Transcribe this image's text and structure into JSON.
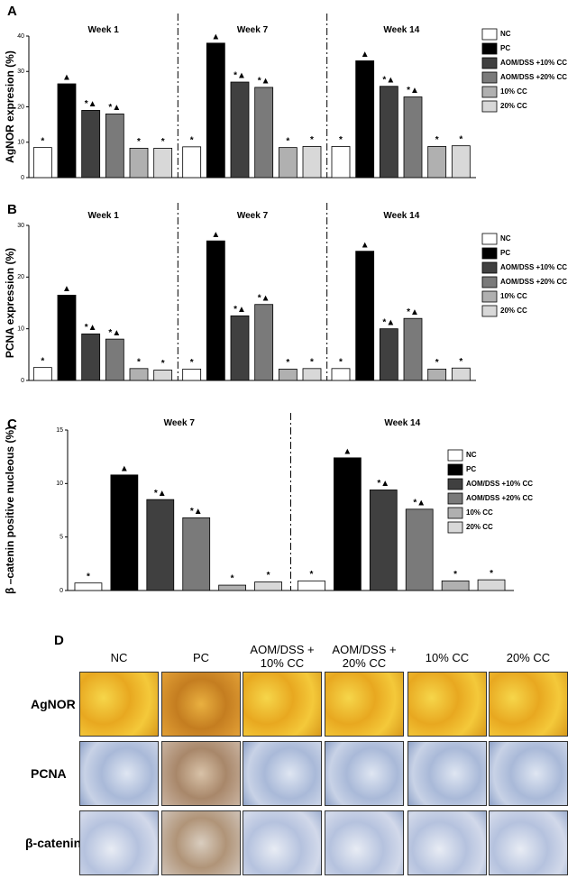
{
  "chart_data": [
    {
      "type": "bar",
      "panel_label": "A",
      "y_label": "AgNOR expresion (%)",
      "categories": [
        "Week 1",
        "Week 7",
        "Week 14"
      ],
      "ylim": [
        0,
        40
      ],
      "yticks": [
        0,
        10,
        20,
        30,
        40
      ],
      "legend": "right",
      "series": [
        {
          "name": "NC",
          "color": "#ffffff",
          "values": [
            8.5,
            8.7,
            8.8
          ],
          "annotations": [
            "*",
            "*",
            "*"
          ]
        },
        {
          "name": "PC",
          "color": "#000000",
          "values": [
            26.5,
            38,
            33
          ],
          "annotations": [
            "▲",
            "▲",
            "▲"
          ]
        },
        {
          "name": "AOM/DSS +10% CC",
          "color": "#404040",
          "values": [
            19,
            27,
            25.8
          ],
          "annotations": [
            "*▲",
            "*▲",
            "*▲"
          ]
        },
        {
          "name": "AOM/DSS +20% CC",
          "color": "#7a7a7a",
          "values": [
            18,
            25.5,
            22.8
          ],
          "annotations": [
            "*▲",
            "*▲",
            "*▲"
          ]
        },
        {
          "name": "10% CC",
          "color": "#b0b0b0",
          "values": [
            8.3,
            8.5,
            8.8
          ],
          "annotations": [
            "*",
            "*",
            "*"
          ]
        },
        {
          "name": "20% CC",
          "color": "#d8d8d8",
          "values": [
            8.3,
            8.8,
            9
          ],
          "annotations": [
            "*",
            "*",
            "*"
          ]
        }
      ]
    },
    {
      "type": "bar",
      "panel_label": "B",
      "y_label": "PCNA expression (%)",
      "categories": [
        "Week 1",
        "Week 7",
        "Week 14"
      ],
      "ylim": [
        0,
        30
      ],
      "yticks": [
        0,
        10,
        20,
        30
      ],
      "legend": "right",
      "series": [
        {
          "name": "NC",
          "color": "#ffffff",
          "values": [
            2.5,
            2.2,
            2.3
          ],
          "annotations": [
            "*",
            "*",
            "*"
          ]
        },
        {
          "name": "PC",
          "color": "#000000",
          "values": [
            16.5,
            27,
            25
          ],
          "annotations": [
            "▲",
            "▲",
            "▲"
          ]
        },
        {
          "name": "AOM/DSS +10% CC",
          "color": "#404040",
          "values": [
            9,
            12.5,
            10
          ],
          "annotations": [
            "*▲",
            "*▲",
            "*▲"
          ]
        },
        {
          "name": "AOM/DSS +20% CC",
          "color": "#7a7a7a",
          "values": [
            8,
            14.7,
            12
          ],
          "annotations": [
            "*▲",
            "*▲",
            "*▲"
          ]
        },
        {
          "name": "10% CC",
          "color": "#b0b0b0",
          "values": [
            2.3,
            2.2,
            2.2
          ],
          "annotations": [
            "*",
            "*",
            "*"
          ]
        },
        {
          "name": "20% CC",
          "color": "#d8d8d8",
          "values": [
            2,
            2.3,
            2.4
          ],
          "annotations": [
            "*",
            "*",
            "*"
          ]
        }
      ]
    },
    {
      "type": "bar",
      "panel_label": "C",
      "y_label": "β –catenin positive nucleous (%)",
      "categories": [
        "Week 7",
        "Week 14"
      ],
      "ylim": [
        0,
        15
      ],
      "yticks": [
        0,
        5,
        10,
        15
      ],
      "legend": "right",
      "series": [
        {
          "name": "NC",
          "color": "#ffffff",
          "values": [
            0.7,
            0.9
          ],
          "annotations": [
            "*",
            "*"
          ]
        },
        {
          "name": "PC",
          "color": "#000000",
          "values": [
            10.8,
            12.4
          ],
          "annotations": [
            "▲",
            "▲"
          ]
        },
        {
          "name": "AOM/DSS +10% CC",
          "color": "#404040",
          "values": [
            8.5,
            9.4
          ],
          "annotations": [
            "*▲",
            "*▲"
          ]
        },
        {
          "name": "AOM/DSS +20% CC",
          "color": "#7a7a7a",
          "values": [
            6.8,
            7.6
          ],
          "annotations": [
            "*▲",
            "*▲"
          ]
        },
        {
          "name": "10% CC",
          "color": "#b0b0b0",
          "values": [
            0.5,
            0.9
          ],
          "annotations": [
            "*",
            "*"
          ]
        },
        {
          "name": "20% CC",
          "color": "#d8d8d8",
          "values": [
            0.8,
            1.0
          ],
          "annotations": [
            "*",
            "*"
          ]
        }
      ]
    }
  ],
  "panel_d": {
    "label": "D",
    "columns": [
      "NC",
      "PC",
      "AOM/DSS + 10% CC",
      "AOM/DSS + 20% CC",
      "10% CC",
      "20% CC"
    ],
    "rows": [
      "AgNOR",
      "PCNA",
      "β-catenin"
    ]
  }
}
